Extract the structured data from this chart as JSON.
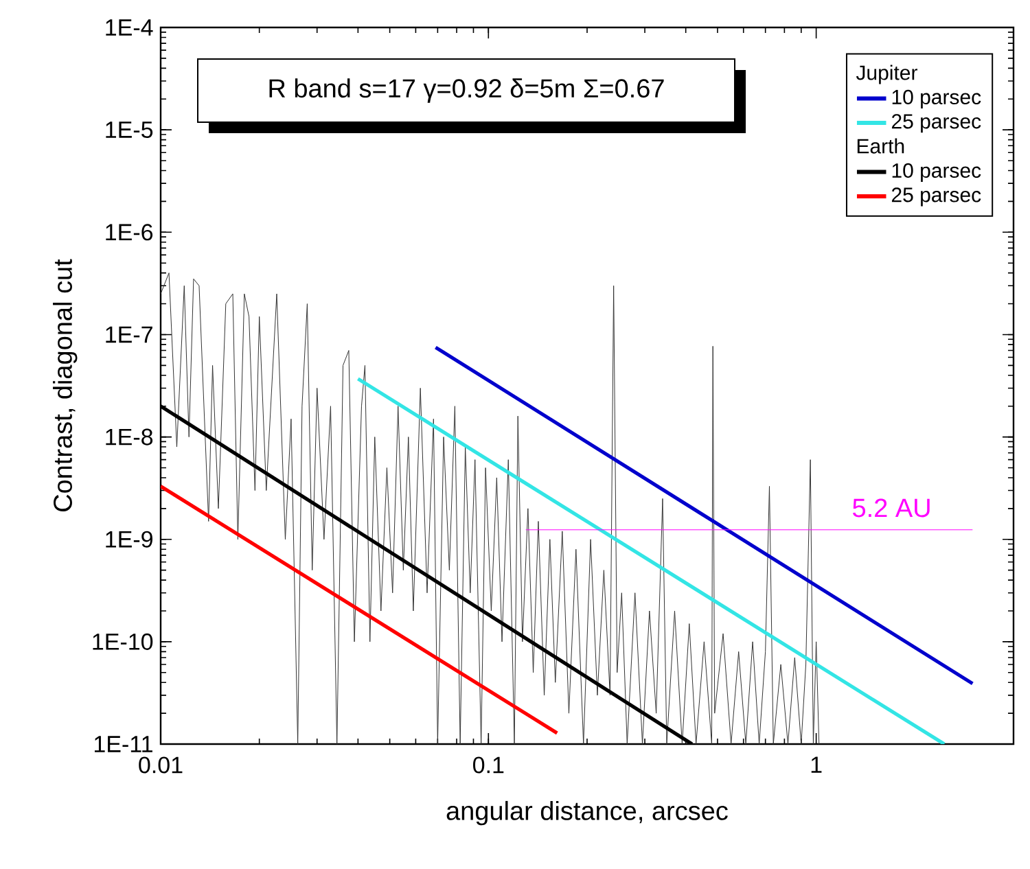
{
  "chart_data": {
    "type": "line",
    "xlabel": "angular distance, arcsec",
    "ylabel": "Contrast, diagonal cut",
    "log": "xy",
    "legend": "top right",
    "xlim": [
      0.01,
      4
    ],
    "xticks": [
      0.01,
      0.1,
      1
    ],
    "ylim": [
      1e-11,
      0.0001
    ],
    "yticks": [
      {
        "value": 1e-11,
        "label": "1E-11"
      },
      {
        "value": 1e-10,
        "label": "1E-10"
      },
      {
        "value": 1e-09,
        "label": "1E-9"
      },
      {
        "value": 1e-08,
        "label": "1E-8"
      },
      {
        "value": 1e-07,
        "label": "1E-7"
      },
      {
        "value": 1e-06,
        "label": "1E-6"
      },
      {
        "value": 1e-05,
        "label": "1E-5"
      },
      {
        "value": 0.0001,
        "label": "1E-4"
      }
    ],
    "annotations": [
      "R band s=17 γ=0.92 δ=5m  Σ=0.67",
      "Jupiter",
      "Earth",
      {
        "text": "5.2 AU",
        "x": 1.7,
        "y": 1.24e-09
      }
    ],
    "series": [
      {
        "color": "#333333",
        "x": [
          0.01,
          0.0106,
          0.0112,
          0.0118,
          0.0122,
          0.0126,
          0.0131,
          0.014,
          0.0144,
          0.015,
          0.0158,
          0.0166,
          0.0172,
          0.018,
          0.0186,
          0.0194,
          0.02,
          0.021,
          0.0226,
          0.024,
          0.025,
          0.0262,
          0.027,
          0.028,
          0.029,
          0.03,
          0.0315,
          0.033,
          0.0345,
          0.036,
          0.0375,
          0.039,
          0.041,
          0.042,
          0.0435,
          0.045,
          0.047,
          0.049,
          0.051,
          0.053,
          0.055,
          0.057,
          0.059,
          0.062,
          0.065,
          0.068,
          0.07,
          0.073,
          0.076,
          0.079,
          0.082,
          0.085,
          0.088,
          0.091,
          0.095,
          0.098,
          0.102,
          0.106,
          0.11,
          0.115,
          0.12,
          0.123,
          0.127,
          0.132,
          0.137,
          0.142,
          0.148,
          0.154,
          0.16,
          0.168,
          0.176,
          0.185,
          0.195,
          0.205,
          0.215,
          0.225,
          0.235,
          0.241,
          0.247,
          0.255,
          0.265,
          0.28,
          0.295,
          0.31,
          0.325,
          0.34,
          0.35,
          0.37,
          0.39,
          0.41,
          0.43,
          0.455,
          0.48,
          0.484,
          0.49,
          0.52,
          0.55,
          0.58,
          0.61,
          0.64,
          0.67,
          0.7,
          0.72,
          0.74,
          0.78,
          0.82,
          0.86,
          0.9,
          0.93,
          0.96,
          0.98,
          1.0,
          1.02
        ],
        "values": [
          2.5e-07,
          4e-07,
          8e-09,
          3e-07,
          1e-08,
          3.5e-07,
          3e-07,
          1.5e-09,
          5e-08,
          2e-09,
          2e-07,
          2.5e-07,
          1e-09,
          2.5e-07,
          1.5e-07,
          3e-09,
          1.5e-07,
          3e-09,
          2.5e-07,
          1e-09,
          1.5e-08,
          1e-11,
          2e-08,
          2e-07,
          5e-10,
          3e-08,
          1e-09,
          2e-08,
          1e-11,
          5e-08,
          7e-08,
          1e-10,
          2e-08,
          5e-08,
          1e-10,
          1e-08,
          2e-10,
          5e-09,
          3e-10,
          2e-08,
          5e-10,
          1e-08,
          2e-10,
          3e-08,
          3e-10,
          1.5e-08,
          1e-11,
          1e-08,
          5e-10,
          2e-08,
          1e-11,
          8e-09,
          3e-10,
          6e-09,
          1e-11,
          5e-09,
          2e-10,
          4e-09,
          1e-10,
          6e-09,
          1e-11,
          1.6e-08,
          1e-10,
          2e-09,
          5e-11,
          1.5e-09,
          3e-11,
          1e-09,
          4e-11,
          1.2e-09,
          2e-11,
          8e-10,
          1e-11,
          1e-09,
          3e-11,
          5e-10,
          3e-11,
          3e-07,
          5e-11,
          3e-10,
          1e-11,
          3e-10,
          1e-11,
          2e-10,
          2e-11,
          2.5e-09,
          1e-11,
          2e-10,
          1e-11,
          1.5e-10,
          1e-11,
          1e-10,
          1e-11,
          7.7e-08,
          2e-11,
          1.2e-10,
          1e-11,
          8e-11,
          1e-11,
          1e-10,
          1e-11,
          8e-11,
          3.3e-09,
          1e-11,
          6e-11,
          1e-11,
          7e-11,
          1e-11,
          6e-11,
          6e-09,
          1e-11,
          1e-10,
          1e-11
        ]
      },
      {
        "name": "10 parsec",
        "color": "#0000cc",
        "x": [
          0.069,
          3.0
        ],
        "values": [
          7.5e-08,
          3.9e-11
        ]
      },
      {
        "name": "25 parsec",
        "color": "#33e5e5",
        "x": [
          0.04,
          2.46
        ],
        "values": [
          3.7e-08,
          1e-11
        ]
      },
      {
        "name": "10 parsec",
        "color": "#000000",
        "x": [
          0.01,
          0.418
        ],
        "values": [
          2e-08,
          1e-11
        ]
      },
      {
        "name": "25 parsec",
        "color": "#ff0000",
        "x": [
          0.01,
          0.162
        ],
        "values": [
          3.3e-09,
          1.28e-11
        ]
      },
      {
        "color": "#ff00ff",
        "x": [
          0.13,
          3.0
        ],
        "values": [
          1.24e-09,
          1.24e-09
        ]
      }
    ]
  }
}
